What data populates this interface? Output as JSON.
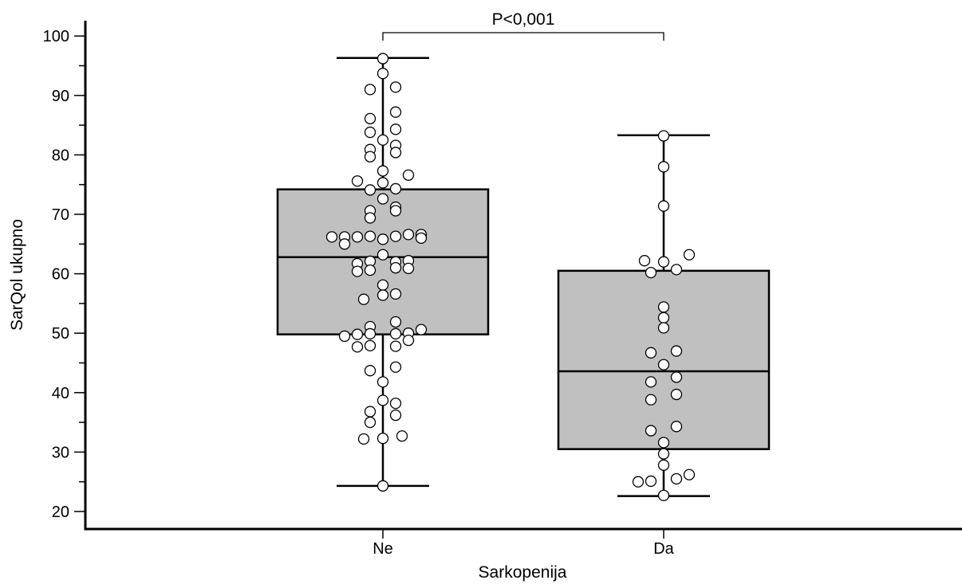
{
  "chart_data": {
    "type": "box",
    "title": "",
    "xlabel": "Sarkopenija",
    "ylabel": "SarQol ukupno",
    "ylim": [
      20,
      100
    ],
    "y_ticks": [
      20,
      30,
      40,
      50,
      60,
      70,
      80,
      90,
      100
    ],
    "y_tick_labels": [
      "20",
      "30",
      "40",
      "50",
      "60",
      "70",
      "80",
      "90",
      "100"
    ],
    "minor_tick_step": 5,
    "grid": false,
    "box_fill": "#c0c0c0",
    "line_color": "#000000",
    "point_fill": "#ffffff",
    "categories": [
      "Ne",
      "Da"
    ],
    "boxes": [
      {
        "category": "Ne",
        "whisker_low": 24.3,
        "q1": 49.8,
        "median": 62.8,
        "q3": 74.2,
        "whisker_high": 96.3,
        "points": [
          {
            "y": 96.2,
            "j": 0
          },
          {
            "y": 93.7,
            "j": 0
          },
          {
            "y": 91.4,
            "j": 1
          },
          {
            "y": 91.0,
            "j": -1
          },
          {
            "y": 87.2,
            "j": 1
          },
          {
            "y": 86.1,
            "j": -1
          },
          {
            "y": 84.3,
            "j": 1
          },
          {
            "y": 83.8,
            "j": -1
          },
          {
            "y": 82.5,
            "j": 0
          },
          {
            "y": 81.6,
            "j": 1
          },
          {
            "y": 80.9,
            "j": -1
          },
          {
            "y": 80.4,
            "j": 1
          },
          {
            "y": 79.7,
            "j": -1
          },
          {
            "y": 77.3,
            "j": 0
          },
          {
            "y": 76.6,
            "j": 2
          },
          {
            "y": 75.6,
            "j": -2
          },
          {
            "y": 75.3,
            "j": 0
          },
          {
            "y": 74.3,
            "j": 1
          },
          {
            "y": 74.1,
            "j": -1
          },
          {
            "y": 72.6,
            "j": 0
          },
          {
            "y": 71.2,
            "j": 1
          },
          {
            "y": 70.6,
            "j": 1
          },
          {
            "y": 70.6,
            "j": -1
          },
          {
            "y": 69.4,
            "j": -1
          },
          {
            "y": 66.6,
            "j": 3
          },
          {
            "y": 66.6,
            "j": 2
          },
          {
            "y": 66.2,
            "j": -4
          },
          {
            "y": 66.2,
            "j": -3
          },
          {
            "y": 66.3,
            "j": -1
          },
          {
            "y": 66.3,
            "j": 1
          },
          {
            "y": 66.2,
            "j": -2
          },
          {
            "y": 66.0,
            "j": 3
          },
          {
            "y": 65.8,
            "j": 0
          },
          {
            "y": 65.0,
            "j": -3
          },
          {
            "y": 63.2,
            "j": 0
          },
          {
            "y": 62.1,
            "j": -1
          },
          {
            "y": 62.0,
            "j": 1
          },
          {
            "y": 62.2,
            "j": 2
          },
          {
            "y": 61.7,
            "j": -2
          },
          {
            "y": 61.0,
            "j": 1
          },
          {
            "y": 60.9,
            "j": 2
          },
          {
            "y": 60.6,
            "j": -1
          },
          {
            "y": 60.4,
            "j": -2
          },
          {
            "y": 58.1,
            "j": 0
          },
          {
            "y": 56.6,
            "j": 1
          },
          {
            "y": 56.4,
            "j": 0
          },
          {
            "y": 55.7,
            "j": -1.5
          },
          {
            "y": 51.9,
            "j": 1
          },
          {
            "y": 51.1,
            "j": -1
          },
          {
            "y": 50.6,
            "j": 3
          },
          {
            "y": 50.0,
            "j": 2
          },
          {
            "y": 49.8,
            "j": -2
          },
          {
            "y": 49.9,
            "j": -1
          },
          {
            "y": 49.9,
            "j": 1
          },
          {
            "y": 49.5,
            "j": -3
          },
          {
            "y": 48.8,
            "j": 2
          },
          {
            "y": 47.9,
            "j": -1
          },
          {
            "y": 47.8,
            "j": 1
          },
          {
            "y": 47.7,
            "j": -2
          },
          {
            "y": 44.3,
            "j": 1
          },
          {
            "y": 43.7,
            "j": -1
          },
          {
            "y": 41.8,
            "j": 0
          },
          {
            "y": 38.7,
            "j": 0
          },
          {
            "y": 38.2,
            "j": 1
          },
          {
            "y": 36.8,
            "j": -1
          },
          {
            "y": 36.2,
            "j": 1
          },
          {
            "y": 35.0,
            "j": -1
          },
          {
            "y": 32.7,
            "j": 1.5
          },
          {
            "y": 32.3,
            "j": 0
          },
          {
            "y": 32.2,
            "j": -1.5
          },
          {
            "y": 24.3,
            "j": 0
          }
        ]
      },
      {
        "category": "Da",
        "whisker_low": 22.6,
        "q1": 30.5,
        "median": 43.6,
        "q3": 60.5,
        "whisker_high": 83.3,
        "points": [
          {
            "y": 83.2,
            "j": 0
          },
          {
            "y": 78.0,
            "j": 0
          },
          {
            "y": 71.4,
            "j": 0
          },
          {
            "y": 63.2,
            "j": 2
          },
          {
            "y": 62.2,
            "j": -1.5
          },
          {
            "y": 62.0,
            "j": 0
          },
          {
            "y": 60.7,
            "j": 1
          },
          {
            "y": 60.2,
            "j": -1
          },
          {
            "y": 54.4,
            "j": 0
          },
          {
            "y": 52.6,
            "j": 0
          },
          {
            "y": 50.9,
            "j": 0
          },
          {
            "y": 47.0,
            "j": 1
          },
          {
            "y": 46.7,
            "j": -1
          },
          {
            "y": 44.7,
            "j": 0
          },
          {
            "y": 42.6,
            "j": 1
          },
          {
            "y": 41.8,
            "j": -1
          },
          {
            "y": 39.7,
            "j": 1
          },
          {
            "y": 38.8,
            "j": -1
          },
          {
            "y": 34.3,
            "j": 1
          },
          {
            "y": 33.6,
            "j": -1
          },
          {
            "y": 31.6,
            "j": 0
          },
          {
            "y": 29.7,
            "j": 0
          },
          {
            "y": 27.8,
            "j": 0
          },
          {
            "y": 26.2,
            "j": 2
          },
          {
            "y": 25.5,
            "j": 1
          },
          {
            "y": 25.1,
            "j": -1
          },
          {
            "y": 25.0,
            "j": -2
          },
          {
            "y": 22.7,
            "j": 0
          }
        ]
      }
    ],
    "annotation": {
      "text": "P<0,001",
      "from": "Ne",
      "to": "Da"
    }
  }
}
